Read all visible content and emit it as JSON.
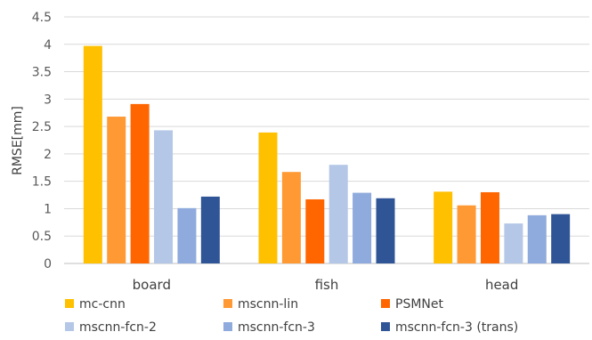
{
  "chart_data": {
    "type": "bar",
    "ylabel": "RMSE[mm]",
    "xlabel": "",
    "ylim": [
      0,
      4.5
    ],
    "yticks": [
      "0",
      "0.5",
      "1",
      "1.5",
      "2",
      "2.5",
      "3",
      "3.5",
      "4",
      "4.5"
    ],
    "grid": true,
    "legend_position": "bottom",
    "categories": [
      "board",
      "fish",
      "head"
    ],
    "series": [
      {
        "name": "mc-cnn",
        "color": "#ffc000",
        "values": [
          3.97,
          2.39,
          1.31
        ]
      },
      {
        "name": "mscnn-lin",
        "color": "#ff9933",
        "values": [
          2.68,
          1.67,
          1.06
        ]
      },
      {
        "name": "PSMNet",
        "color": "#ff6600",
        "values": [
          2.91,
          1.17,
          1.3
        ]
      },
      {
        "name": "mscnn-fcn-2",
        "color": "#b4c7e7",
        "values": [
          2.43,
          1.8,
          0.73
        ]
      },
      {
        "name": "mscnn-fcn-3",
        "color": "#8faadc",
        "values": [
          1.01,
          1.29,
          0.88
        ]
      },
      {
        "name": "mscnn-fcn-3 (trans)",
        "color": "#2f5597",
        "values": [
          1.22,
          1.19,
          0.9
        ]
      }
    ]
  }
}
